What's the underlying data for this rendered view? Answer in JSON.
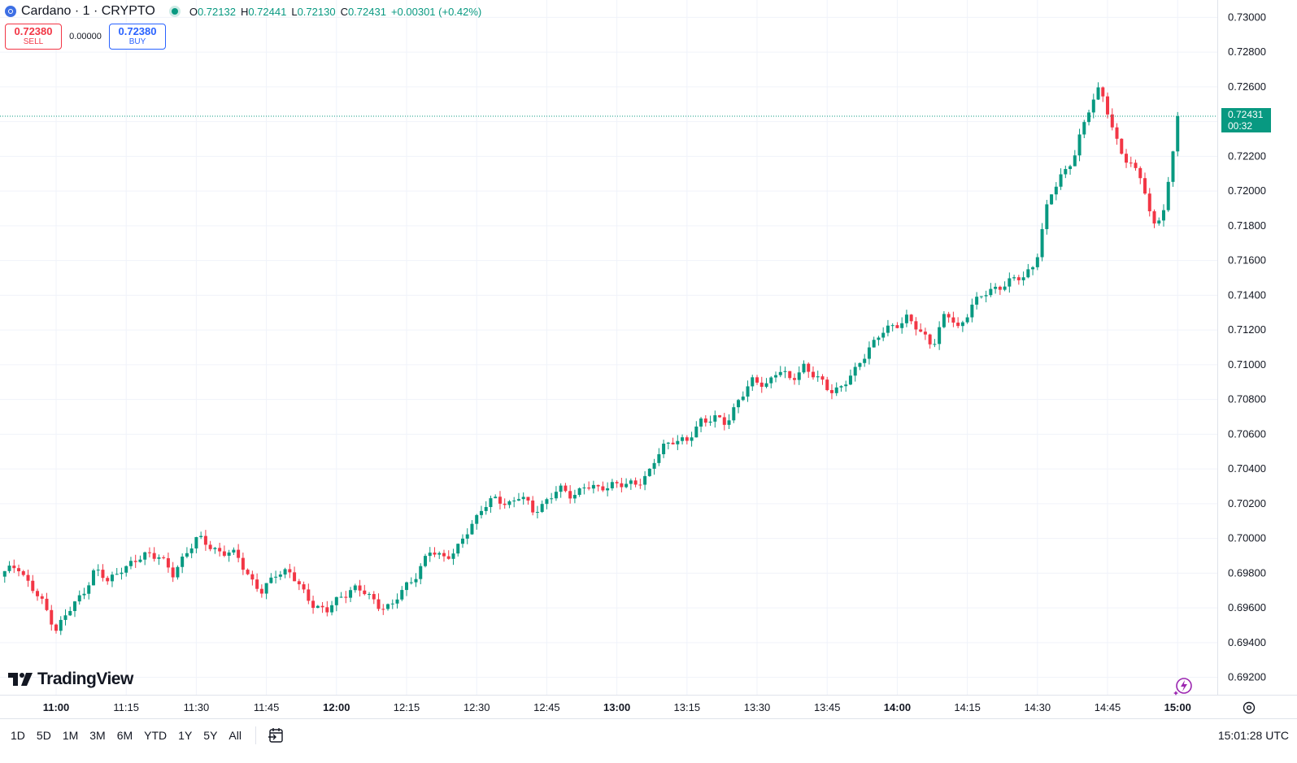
{
  "legend": {
    "symbol": "Cardano · 1 · CRYPTO",
    "open_label": "O",
    "open": "0.72132",
    "high_label": "H",
    "high": "0.72441",
    "low_label": "L",
    "low": "0.72130",
    "close_label": "C",
    "close": "0.72431",
    "change": "+0.00301 (+0.42%)"
  },
  "trade": {
    "sell_price": "0.72380",
    "sell_label": "SELL",
    "spread": "0.00000",
    "buy_price": "0.72380",
    "buy_label": "BUY"
  },
  "price_tag": {
    "price": "0.72431",
    "countdown": "00:32"
  },
  "logo_text": "TradingView",
  "bottom_bar": {
    "ranges": [
      "1D",
      "5D",
      "1M",
      "3M",
      "6M",
      "YTD",
      "1Y",
      "5Y",
      "All"
    ],
    "clock": "15:01:28 UTC"
  },
  "colors": {
    "up": "#089981",
    "down": "#f23645",
    "grid": "#f0f3fa",
    "accent": "#2962ff"
  },
  "icons": {
    "settings": "gear-icon",
    "date_range": "calendar-arrow-icon",
    "flash": "lightning-sparkle-icon",
    "symbol": "cardano-logo-icon"
  },
  "chart_data": {
    "type": "candlestick",
    "symbol": "Cardano · 1 · CRYPTO",
    "ylim": [
      0.691,
      0.731
    ],
    "y_ticks": [
      "0.73000",
      "0.72800",
      "0.72600",
      "0.72400",
      "0.72200",
      "0.72000",
      "0.71800",
      "0.71600",
      "0.71400",
      "0.71200",
      "0.71000",
      "0.70800",
      "0.70600",
      "0.70400",
      "0.70200",
      "0.70000",
      "0.69800",
      "0.69600",
      "0.69400",
      "0.69200"
    ],
    "x_ticks": [
      {
        "label": "11:00",
        "bold": true
      },
      {
        "label": "11:15",
        "bold": false
      },
      {
        "label": "11:30",
        "bold": false
      },
      {
        "label": "11:45",
        "bold": false
      },
      {
        "label": "12:00",
        "bold": true
      },
      {
        "label": "12:15",
        "bold": false
      },
      {
        "label": "12:30",
        "bold": false
      },
      {
        "label": "12:45",
        "bold": false
      },
      {
        "label": "13:00",
        "bold": true
      },
      {
        "label": "13:15",
        "bold": false
      },
      {
        "label": "13:30",
        "bold": false
      },
      {
        "label": "13:45",
        "bold": false
      },
      {
        "label": "14:00",
        "bold": true
      },
      {
        "label": "14:15",
        "bold": false
      },
      {
        "label": "14:30",
        "bold": false
      },
      {
        "label": "14:45",
        "bold": false
      },
      {
        "label": "15:00",
        "bold": true
      }
    ],
    "interval_minutes": 1,
    "first_bar_time": "10:49",
    "last_price": 0.72431,
    "close_path": [
      0.698,
      0.6985,
      0.6972,
      0.6962,
      0.6948,
      0.6958,
      0.6968,
      0.6982,
      0.6975,
      0.6983,
      0.6985,
      0.6992,
      0.699,
      0.6978,
      0.6992,
      0.7,
      0.6995,
      0.6992,
      0.699,
      0.6978,
      0.6968,
      0.698,
      0.6982,
      0.697,
      0.6962,
      0.6958,
      0.6966,
      0.6972,
      0.6968,
      0.6962,
      0.696,
      0.6972,
      0.698,
      0.6992,
      0.699,
      0.6992,
      0.7005,
      0.7018,
      0.7022,
      0.702,
      0.7025,
      0.7015,
      0.7022,
      0.7028,
      0.7025,
      0.703,
      0.7028,
      0.7032,
      0.703,
      0.7032,
      0.7038,
      0.7052,
      0.7058,
      0.7055,
      0.7068,
      0.707,
      0.7065,
      0.7082,
      0.709,
      0.7088,
      0.7098,
      0.709,
      0.71,
      0.7092,
      0.7085,
      0.7088,
      0.7096,
      0.711,
      0.7118,
      0.7122,
      0.7128,
      0.7118,
      0.7112,
      0.713,
      0.712,
      0.7135,
      0.714,
      0.7145,
      0.7148,
      0.715,
      0.716,
      0.7195,
      0.721,
      0.722,
      0.7245,
      0.7262,
      0.7232,
      0.7218,
      0.7212,
      0.718,
      0.719,
      0.7243
    ]
  }
}
